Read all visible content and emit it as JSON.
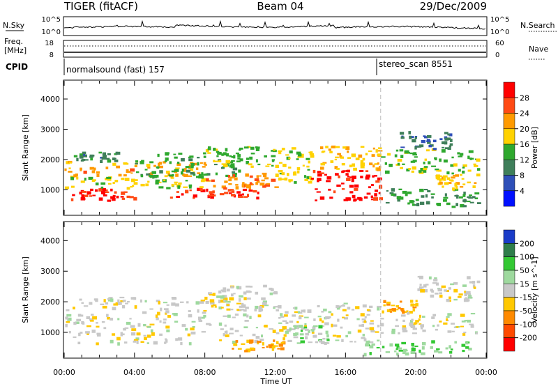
{
  "header": {
    "title_left": "TIGER (fitACF)",
    "title_center": "Beam 04",
    "title_right": "29/Dec/2009"
  },
  "top_panel": {
    "left_label": "N.Sky",
    "right_label": "N.Search",
    "tick_top": "10^5",
    "tick_bottom": "10^0"
  },
  "freq_panel": {
    "left_label_1": "Freq.",
    "left_label_2": "[MHz]",
    "right_label": "Nave",
    "left_tick_top": "18",
    "left_tick_bottom": "8",
    "right_tick_top": "60",
    "right_tick_bottom": "0"
  },
  "cpid_panel": {
    "label": "CPID",
    "program_1": "normalsound (fast) 157",
    "program_2": "stereo_scan 8551"
  },
  "power_colorbar": {
    "label": "Power [dB]",
    "ticks": [
      "28",
      "24",
      "20",
      "16",
      "12",
      "8",
      "4"
    ],
    "colors": [
      "#ff0000",
      "#ff4a14",
      "#ff9a00",
      "#ffd200",
      "#2ea82e",
      "#3f7f5a",
      "#2e4fb8",
      "#0010ff"
    ]
  },
  "velocity_colorbar": {
    "label": "Velocity [m s^-1]",
    "ticks": [
      "200",
      "100",
      "50",
      "15",
      "-15",
      "-50",
      "-100",
      "-200"
    ],
    "colors": [
      "#1a3cc8",
      "#2e7d4a",
      "#33c833",
      "#9ed99e",
      "#c8c8c8",
      "#ffc800",
      "#ff8a00",
      "#ff4a00",
      "#ff0000"
    ]
  },
  "chart_data": [
    {
      "type": "heatmap",
      "name": "power",
      "ylabel": "Slant Range [km]",
      "xlabel": "",
      "yticks": [
        1000,
        2000,
        3000,
        4000
      ],
      "ylim": [
        180,
        4600
      ],
      "xlim": [
        0,
        24
      ],
      "x_tick_labels": [
        "00:00",
        "04:00",
        "08:00",
        "12:00",
        "16:00",
        "20:00",
        "00:00"
      ],
      "x_tick_hours": [
        0,
        4,
        8,
        12,
        16,
        20,
        24
      ],
      "mode_change_hour": 18.0,
      "colorbar_range": [
        0,
        30
      ],
      "bands": [
        {
          "t0": 0.0,
          "t1": 4.0,
          "r0": 600,
          "r1": 1000,
          "value": 27
        },
        {
          "t0": 0.0,
          "t1": 8.0,
          "r0": 1000,
          "r1": 1400,
          "value": 16
        },
        {
          "t0": 0.0,
          "t1": 8.0,
          "r0": 1400,
          "r1": 1900,
          "value": 20
        },
        {
          "t0": 0.5,
          "t1": 3.0,
          "r0": 1900,
          "r1": 2200,
          "value": 10
        },
        {
          "t0": 4.0,
          "t1": 10.0,
          "r0": 1400,
          "r1": 2200,
          "value": 12
        },
        {
          "t0": 6.0,
          "t1": 11.0,
          "r0": 700,
          "r1": 1000,
          "value": 26
        },
        {
          "t0": 8.0,
          "t1": 12.0,
          "r0": 1700,
          "r1": 2400,
          "value": 14
        },
        {
          "t0": 8.0,
          "t1": 12.0,
          "r0": 1000,
          "r1": 1500,
          "value": 22
        },
        {
          "t0": 12.0,
          "t1": 14.0,
          "r0": 1200,
          "r1": 2400,
          "value": 16
        },
        {
          "t0": 14.0,
          "t1": 18.0,
          "r0": 600,
          "r1": 1600,
          "value": 28
        },
        {
          "t0": 14.5,
          "t1": 18.0,
          "r0": 1600,
          "r1": 2400,
          "value": 18
        },
        {
          "t0": 18.0,
          "t1": 23.5,
          "r0": 400,
          "r1": 1000,
          "value": 12
        },
        {
          "t0": 18.0,
          "t1": 23.5,
          "r0": 1500,
          "r1": 2300,
          "value": 14
        },
        {
          "t0": 19.0,
          "t1": 22.0,
          "r0": 2300,
          "r1": 2900,
          "value": 8
        },
        {
          "t0": 21.0,
          "t1": 23.5,
          "r0": 1000,
          "r1": 1500,
          "value": 18
        }
      ]
    },
    {
      "type": "heatmap",
      "name": "velocity",
      "ylabel": "Slant Range [km]",
      "xlabel": "Time UT",
      "yticks": [
        1000,
        2000,
        3000,
        4000
      ],
      "ylim": [
        180,
        4600
      ],
      "xlim": [
        0,
        24
      ],
      "x_tick_labels": [
        "00:00",
        "04:00",
        "08:00",
        "12:00",
        "16:00",
        "20:00",
        "00:00"
      ],
      "x_tick_hours": [
        0,
        4,
        8,
        12,
        16,
        20,
        24
      ],
      "mode_change_hour": 18.0,
      "colorbar_range": [
        -200,
        200
      ],
      "bands": [
        {
          "t0": 0.0,
          "t1": 18.0,
          "r0": 600,
          "r1": 1900,
          "value": 0
        },
        {
          "t0": 0.5,
          "t1": 8.0,
          "r0": 1900,
          "r1": 2100,
          "value": 0
        },
        {
          "t0": 8.0,
          "t1": 12.0,
          "r0": 1700,
          "r1": 2500,
          "value": 0
        },
        {
          "t0": 9.5,
          "t1": 12.5,
          "r0": 350,
          "r1": 700,
          "value": -60
        },
        {
          "t0": 13.0,
          "t1": 15.0,
          "r0": 600,
          "r1": 1200,
          "value": 40
        },
        {
          "t0": 17.0,
          "t1": 23.0,
          "r0": 250,
          "r1": 700,
          "value": 60
        },
        {
          "t0": 18.0,
          "t1": 20.0,
          "r0": 1600,
          "r1": 2000,
          "value": -70
        },
        {
          "t0": 18.5,
          "t1": 23.5,
          "r0": 900,
          "r1": 1600,
          "value": 0
        },
        {
          "t0": 20.0,
          "t1": 23.5,
          "r0": 2000,
          "r1": 2800,
          "value": 0
        }
      ]
    }
  ]
}
